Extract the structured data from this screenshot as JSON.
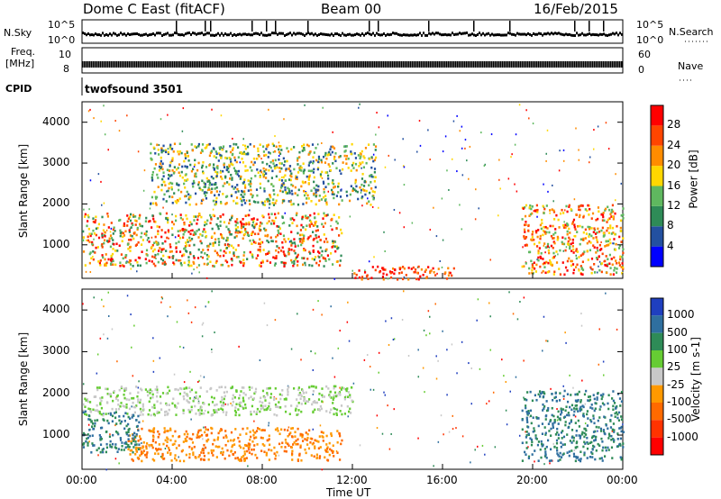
{
  "header": {
    "station": "Dome C East (fitACF)",
    "beam": "Beam 00",
    "date": "16/Feb/2015"
  },
  "top_panels": {
    "nsky_label": "N.Sky",
    "nsky_ticks": [
      "10^5",
      "10^0"
    ],
    "nsearch_label": "N.Search",
    "nsearch_ticks": [
      "10^5",
      "10^0"
    ],
    "freq_label_1": "Freq.",
    "freq_label_2": "[MHz]",
    "freq_ticks": [
      "10",
      "8"
    ],
    "nave_label": "Nave",
    "nave_ticks": [
      "60",
      "0"
    ],
    "cpid_label": "CPID",
    "cpid_value": "twofsound 3501"
  },
  "chart_data": [
    {
      "type": "heatmap",
      "name": "power-panel",
      "x_range": [
        "00:00",
        "24:00"
      ],
      "ylabel": "Slant Range [km]",
      "ylim": [
        180,
        4500
      ],
      "yticks": [
        1000,
        2000,
        3000,
        4000
      ],
      "colorbar": {
        "label": "Power [dB]",
        "ticks": [
          "4",
          "8",
          "12",
          "16",
          "20",
          "24",
          "28"
        ],
        "colors": [
          "#0000ff",
          "#2350a0",
          "#2e8b57",
          "#5fb85f",
          "#ffd700",
          "#ff8c00",
          "#ff4500",
          "#ff0000"
        ]
      },
      "features": [
        {
          "feature": "strong E/F scatter band",
          "time": [
            "00:00",
            "11:30"
          ],
          "range_km": [
            500,
            1800
          ],
          "power_db": [
            12,
            30
          ]
        },
        {
          "feature": "high-range patches",
          "time": [
            "03:00",
            "13:00"
          ],
          "range_km": [
            2000,
            3500
          ],
          "power_db": [
            8,
            20
          ]
        },
        {
          "feature": "near-range strong echo",
          "time": [
            "12:00",
            "16:30"
          ],
          "range_km": [
            180,
            500
          ],
          "power_db": [
            24,
            30
          ]
        },
        {
          "feature": "evening band",
          "time": [
            "19:30",
            "24:00"
          ],
          "range_km": [
            300,
            2000
          ],
          "power_db": [
            14,
            30
          ]
        }
      ]
    },
    {
      "type": "heatmap",
      "name": "velocity-panel",
      "x_range": [
        "00:00",
        "24:00"
      ],
      "xlabel": "Time UT",
      "xticks": [
        "00:00",
        "04:00",
        "08:00",
        "12:00",
        "16:00",
        "20:00",
        "00:00"
      ],
      "ylabel": "Slant Range [km]",
      "ylim": [
        180,
        4500
      ],
      "yticks": [
        1000,
        2000,
        3000,
        4000
      ],
      "colorbar": {
        "label": "Velocity [m s-1]",
        "ticks": [
          "1000",
          "500",
          "100",
          "25",
          "-25",
          "-100",
          "-500",
          "-1000"
        ],
        "colors": [
          "#1f3fbf",
          "#2f6f9f",
          "#2e8b57",
          "#66cc33",
          "#c8c8c8",
          "#ff9900",
          "#ff6a00",
          "#ff3300",
          "#ff0000"
        ]
      },
      "features": [
        {
          "feature": "ground scatter band",
          "time": [
            "00:00",
            "12:00"
          ],
          "range_km": [
            1500,
            2200
          ],
          "velocity_ms": [
            -25,
            25
          ]
        },
        {
          "feature": "westward flow band",
          "time": [
            "02:00",
            "11:30"
          ],
          "range_km": [
            400,
            1200
          ],
          "velocity_ms": [
            -500,
            -100
          ]
        },
        {
          "feature": "positive flow",
          "time": [
            "00:00",
            "02:30"
          ],
          "range_km": [
            600,
            1600
          ],
          "velocity_ms": [
            100,
            500
          ]
        },
        {
          "feature": "evening positive flow",
          "time": [
            "19:30",
            "24:00"
          ],
          "range_km": [
            400,
            2100
          ],
          "velocity_ms": [
            100,
            500
          ]
        }
      ]
    }
  ],
  "colors": {
    "frame": "#000000",
    "background": "#ffffff"
  }
}
